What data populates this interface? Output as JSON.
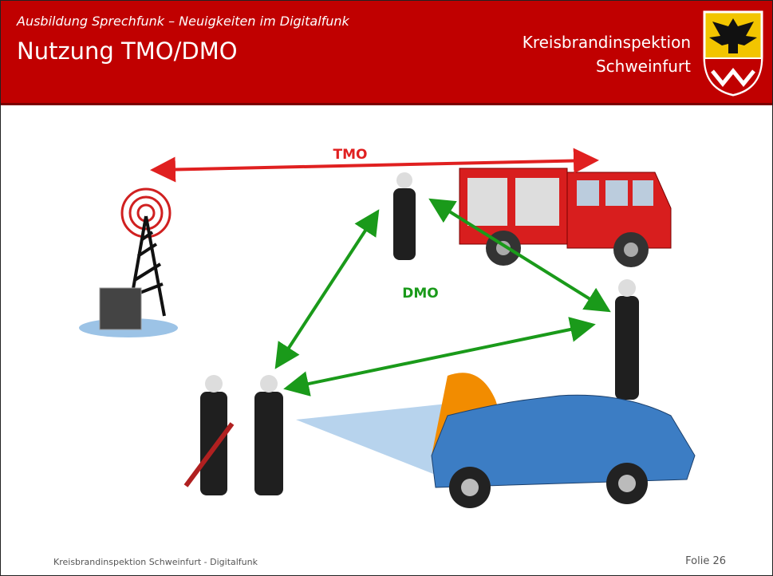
{
  "header": {
    "subtitle": "Ausbildung Sprechfunk – Neuigkeiten im Digitalfunk",
    "title": "Nutzung TMO/DMO",
    "organization": [
      "Kreisbrandinspektion",
      "Schweinfurt"
    ]
  },
  "diagram": {
    "tmo_label": "TMO",
    "dmo_label": "DMO"
  },
  "footer": {
    "left": "Kreisbrandinspektion Schweinfurt - Digitalfunk",
    "right": "Folie 26"
  }
}
